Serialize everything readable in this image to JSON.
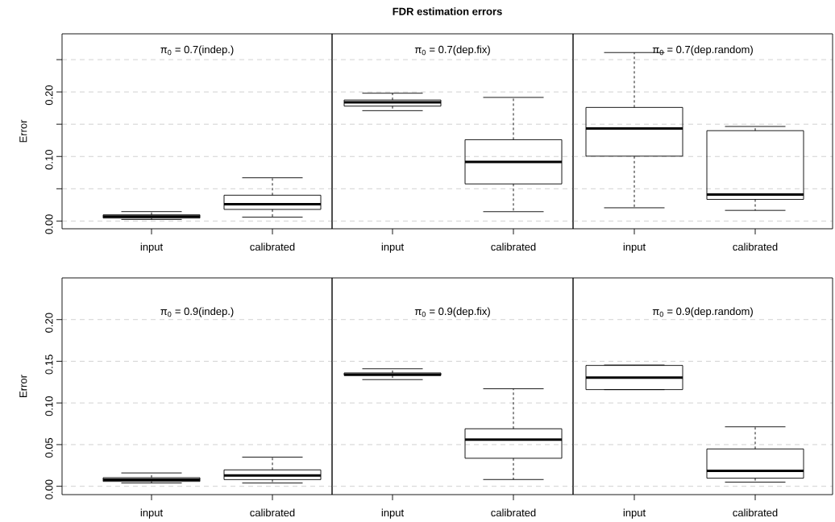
{
  "chart_data": [
    {
      "type": "box",
      "subtitle": "π$_{0}$ = 0.7(indep.)",
      "ylabel": "Error",
      "categories": [
        "input",
        "calibrated"
      ],
      "ylim": [
        -0.012,
        0.29
      ],
      "grid": "y",
      "yticks": [
        {
          "value": 0,
          "label": "0.00"
        },
        {
          "value": 0.05,
          "label": null
        },
        {
          "value": 0.1,
          "label": "0.10"
        },
        {
          "value": 0.15,
          "label": null
        },
        {
          "value": 0.2,
          "label": "0.20"
        },
        {
          "value": 0.25,
          "label": null
        }
      ],
      "boxes": [
        {
          "low": 0.0025,
          "q1": 0.0046,
          "median": 0.007,
          "q3": 0.0096,
          "high": 0.0146
        },
        {
          "low": 0.006,
          "q1": 0.018,
          "median": 0.026,
          "q3": 0.04,
          "high": 0.067
        }
      ]
    },
    {
      "type": "box",
      "title": "FDR estimation errors",
      "subtitle": "π$_{0}$ = 0.7(dep.fix)",
      "categories": [
        "input",
        "calibrated"
      ],
      "ylim": [
        -0.012,
        0.29
      ],
      "grid": "y",
      "tick_labels": "x",
      "yticks": [
        {
          "value": 0,
          "label": null
        },
        {
          "value": 0.05,
          "label": null
        },
        {
          "value": 0.1,
          "label": null
        },
        {
          "value": 0.15,
          "label": null
        },
        {
          "value": 0.2,
          "label": null
        },
        {
          "value": 0.25,
          "label": null
        }
      ],
      "boxes": [
        {
          "low": 0.171,
          "q1": 0.178,
          "median": 0.184,
          "q3": 0.1875,
          "high": 0.198
        },
        {
          "low": 0.0145,
          "q1": 0.0575,
          "median": 0.0915,
          "q3": 0.126,
          "high": 0.1915
        }
      ]
    },
    {
      "type": "box",
      "subtitle": "π$_{0}$ = 0.7(dep.random)",
      "categories": [
        "input",
        "calibrated"
      ],
      "ylim": [
        -0.012,
        0.29
      ],
      "grid": "y",
      "tick_labels": "x",
      "yticks": [
        {
          "value": 0,
          "label": null
        },
        {
          "value": 0.05,
          "label": null
        },
        {
          "value": 0.1,
          "label": null
        },
        {
          "value": 0.15,
          "label": null
        },
        {
          "value": 0.2,
          "label": null
        },
        {
          "value": 0.25,
          "label": null
        }
      ],
      "boxes": [
        {
          "low": 0.0205,
          "q1": 0.1005,
          "median": 0.1435,
          "q3": 0.176,
          "high": 0.261
        },
        {
          "low": 0.0165,
          "q1": 0.0335,
          "median": 0.041,
          "q3": 0.14,
          "high": 0.1465
        }
      ]
    },
    {
      "type": "box",
      "subtitle": "π$_{0}$ = 0.9(indep.)",
      "ylabel": "Error",
      "categories": [
        "input",
        "calibrated"
      ],
      "ylim": [
        -0.01,
        0.25
      ],
      "grid": "y",
      "yticks": [
        {
          "value": 0,
          "label": "0.00"
        },
        {
          "value": 0.05,
          "label": "0.05"
        },
        {
          "value": 0.1,
          "label": "0.10"
        },
        {
          "value": 0.15,
          "label": "0.15"
        },
        {
          "value": 0.2,
          "label": "0.20"
        }
      ],
      "boxes": [
        {
          "low": 0.0039,
          "q1": 0.0058,
          "median": 0.008,
          "q3": 0.0103,
          "high": 0.016
        },
        {
          "low": 0.0039,
          "q1": 0.008,
          "median": 0.0129,
          "q3": 0.0197,
          "high": 0.035
        }
      ]
    },
    {
      "type": "box",
      "subtitle": "π$_{0}$ = 0.9(dep.fix)",
      "categories": [
        "input",
        "calibrated"
      ],
      "ylim": [
        -0.01,
        0.25
      ],
      "grid": "y",
      "tick_labels": "x",
      "yticks": [
        {
          "value": 0,
          "label": null
        },
        {
          "value": 0.05,
          "label": null
        },
        {
          "value": 0.1,
          "label": null
        },
        {
          "value": 0.15,
          "label": null
        },
        {
          "value": 0.2,
          "label": null
        }
      ],
      "boxes": [
        {
          "low": 0.128,
          "q1": 0.133,
          "median": 0.134,
          "q3": 0.136,
          "high": 0.141
        },
        {
          "low": 0.0081,
          "q1": 0.0336,
          "median": 0.056,
          "q3": 0.069,
          "high": 0.117
        }
      ]
    },
    {
      "type": "box",
      "subtitle": "π$_{0}$ = 0.9(dep.random)",
      "categories": [
        "input",
        "calibrated"
      ],
      "ylim": [
        -0.01,
        0.25
      ],
      "grid": "y",
      "tick_labels": "x",
      "yticks": [
        {
          "value": 0,
          "label": null
        },
        {
          "value": 0.05,
          "label": null
        },
        {
          "value": 0.1,
          "label": null
        },
        {
          "value": 0.15,
          "label": null
        },
        {
          "value": 0.2,
          "label": null
        }
      ],
      "boxes": [
        {
          "low": 0.116,
          "q1": 0.116,
          "median": 0.1305,
          "q3": 0.145,
          "high": 0.1455
        },
        {
          "low": 0.005,
          "q1": 0.0097,
          "median": 0.0185,
          "q3": 0.0448,
          "high": 0.0714
        }
      ]
    }
  ]
}
